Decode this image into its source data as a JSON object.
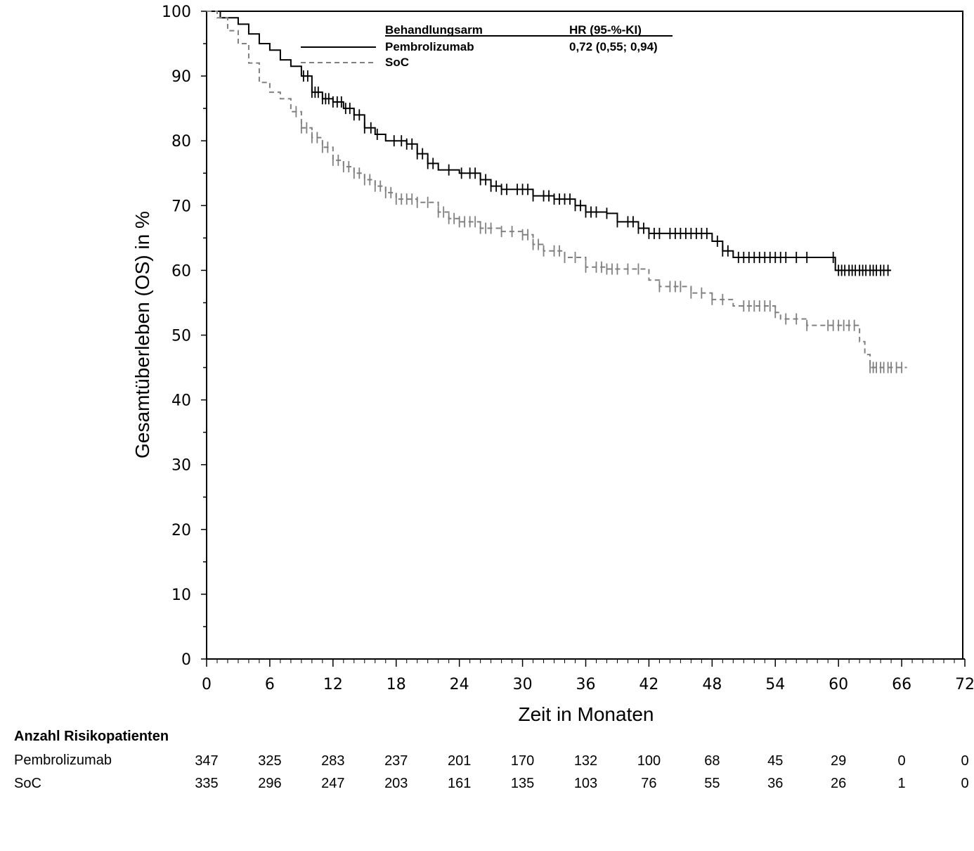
{
  "chart_data": {
    "type": "line",
    "subtype": "kaplan-meier",
    "xlabel": "Zeit in Monaten",
    "ylabel": "Gesamtüberleben (OS) in %",
    "xlim": [
      0,
      72
    ],
    "ylim": [
      0,
      100
    ],
    "xticks": [
      0,
      6,
      12,
      18,
      24,
      30,
      36,
      42,
      48,
      54,
      60,
      66,
      72
    ],
    "yticks": [
      0,
      10,
      20,
      30,
      40,
      50,
      60,
      70,
      80,
      90,
      100
    ],
    "legend": {
      "position": "top-center",
      "header_arm": "Behandlungsarm",
      "header_hr": "HR (95-%-KI)",
      "hr_text": "0,72 (0,55; 0,94)"
    },
    "series": [
      {
        "name": "Pembrolizumab",
        "color": "#000000",
        "style": "solid",
        "end": 65,
        "steps": [
          [
            0,
            100
          ],
          [
            1.3,
            99
          ],
          [
            3,
            98
          ],
          [
            4,
            96.5
          ],
          [
            5,
            95
          ],
          [
            6,
            94
          ],
          [
            7,
            92.5
          ],
          [
            8,
            91.5
          ],
          [
            9,
            90
          ],
          [
            10,
            87.5
          ],
          [
            11,
            86.5
          ],
          [
            12,
            86
          ],
          [
            13,
            85
          ],
          [
            14,
            84
          ],
          [
            15,
            82
          ],
          [
            16,
            81
          ],
          [
            17,
            80
          ],
          [
            19,
            79.5
          ],
          [
            20,
            78
          ],
          [
            21,
            76.5
          ],
          [
            22,
            75.5
          ],
          [
            24,
            75
          ],
          [
            26,
            74
          ],
          [
            27,
            73
          ],
          [
            28,
            72.5
          ],
          [
            31,
            71.5
          ],
          [
            33,
            71
          ],
          [
            35,
            70
          ],
          [
            36,
            69
          ],
          [
            38,
            68.8
          ],
          [
            39,
            67.5
          ],
          [
            41,
            66.5
          ],
          [
            42,
            65.7
          ],
          [
            48,
            64.5
          ],
          [
            49,
            63
          ],
          [
            50,
            62
          ],
          [
            59.7,
            60
          ]
        ],
        "censored": [
          9.2,
          9.6,
          10,
          10.3,
          10.6,
          11,
          11.3,
          11.6,
          12,
          12.4,
          12.8,
          13.2,
          13.6,
          14,
          14.5,
          15,
          15.6,
          16.2,
          17.8,
          18.5,
          19,
          19.5,
          20,
          20.5,
          21,
          21.5,
          23,
          24.2,
          25,
          25.5,
          26,
          26.5,
          27,
          27.5,
          28,
          28.5,
          29.5,
          30,
          30.5,
          31,
          32,
          32.5,
          33,
          33.5,
          34,
          34.5,
          35,
          35.5,
          36,
          36.5,
          37,
          38,
          39,
          40,
          40.5,
          41,
          41.5,
          42,
          42.5,
          43,
          44,
          44.5,
          45,
          45.5,
          46,
          46.5,
          47,
          47.5,
          48.5,
          49,
          49.5,
          50.5,
          51,
          51.5,
          52,
          52.5,
          53,
          53.5,
          54,
          54.5,
          55,
          56,
          57,
          59.5,
          60,
          60.3,
          60.6,
          61,
          61.3,
          61.6,
          62,
          62.3,
          62.6,
          63,
          63.3,
          63.6,
          64,
          64.3,
          64.7
        ]
      },
      {
        "name": "SoC",
        "color": "#808080",
        "style": "dashed",
        "end": 66.5,
        "steps": [
          [
            0,
            100
          ],
          [
            1,
            99
          ],
          [
            2,
            97
          ],
          [
            3,
            95
          ],
          [
            4,
            92
          ],
          [
            5,
            89
          ],
          [
            6,
            87.5
          ],
          [
            7,
            86.5
          ],
          [
            8,
            84.5
          ],
          [
            9,
            82
          ],
          [
            10,
            80.5
          ],
          [
            11,
            79
          ],
          [
            12,
            77
          ],
          [
            13,
            76
          ],
          [
            14,
            75
          ],
          [
            15,
            74
          ],
          [
            16,
            73
          ],
          [
            17,
            72
          ],
          [
            18,
            71
          ],
          [
            20,
            70.5
          ],
          [
            22,
            69
          ],
          [
            23,
            68
          ],
          [
            24,
            67.5
          ],
          [
            26,
            66.5
          ],
          [
            28,
            66
          ],
          [
            30,
            65.5
          ],
          [
            31,
            64
          ],
          [
            32,
            63
          ],
          [
            34,
            62
          ],
          [
            36,
            60.5
          ],
          [
            38,
            60.2
          ],
          [
            42,
            58.5
          ],
          [
            43,
            57.5
          ],
          [
            46,
            56.5
          ],
          [
            48,
            55.5
          ],
          [
            50,
            54.5
          ],
          [
            54,
            53.5
          ],
          [
            54.5,
            52.5
          ],
          [
            57,
            51.5
          ],
          [
            62,
            49
          ],
          [
            62.5,
            47
          ],
          [
            63,
            45
          ]
        ],
        "censored": [
          8.5,
          9,
          9.5,
          10,
          10.5,
          11,
          11.5,
          12,
          12.5,
          13,
          13.5,
          14,
          14.5,
          15,
          15.5,
          16,
          16.5,
          17,
          17.5,
          18,
          18.5,
          19,
          19.5,
          20,
          21,
          22,
          22.5,
          23,
          23.5,
          24,
          24.5,
          25,
          25.5,
          26,
          26.5,
          27,
          28,
          29,
          30,
          30.5,
          31,
          31.5,
          32,
          33,
          33.5,
          34,
          35,
          36,
          37,
          37.5,
          38,
          38.5,
          39,
          40,
          41,
          43,
          44,
          44.5,
          45,
          46,
          47,
          48,
          49,
          51,
          51.5,
          52,
          52.5,
          53,
          53.5,
          54,
          55,
          56,
          57,
          59,
          59.5,
          60,
          60.5,
          61,
          61.5,
          63,
          63.3,
          63.6,
          64,
          64.3,
          64.7,
          65,
          65.5,
          66
        ]
      }
    ]
  },
  "risk_table": {
    "title": "Anzahl Risikopatienten",
    "rows": [
      {
        "label": "Pembrolizumab",
        "values": [
          "347",
          "325",
          "283",
          "237",
          "201",
          "170",
          "132",
          "100",
          "68",
          "45",
          "29",
          "0",
          "0"
        ]
      },
      {
        "label": "SoC",
        "values": [
          "335",
          "296",
          "247",
          "203",
          "161",
          "135",
          "103",
          "76",
          "55",
          "36",
          "26",
          "1",
          "0"
        ]
      }
    ]
  }
}
